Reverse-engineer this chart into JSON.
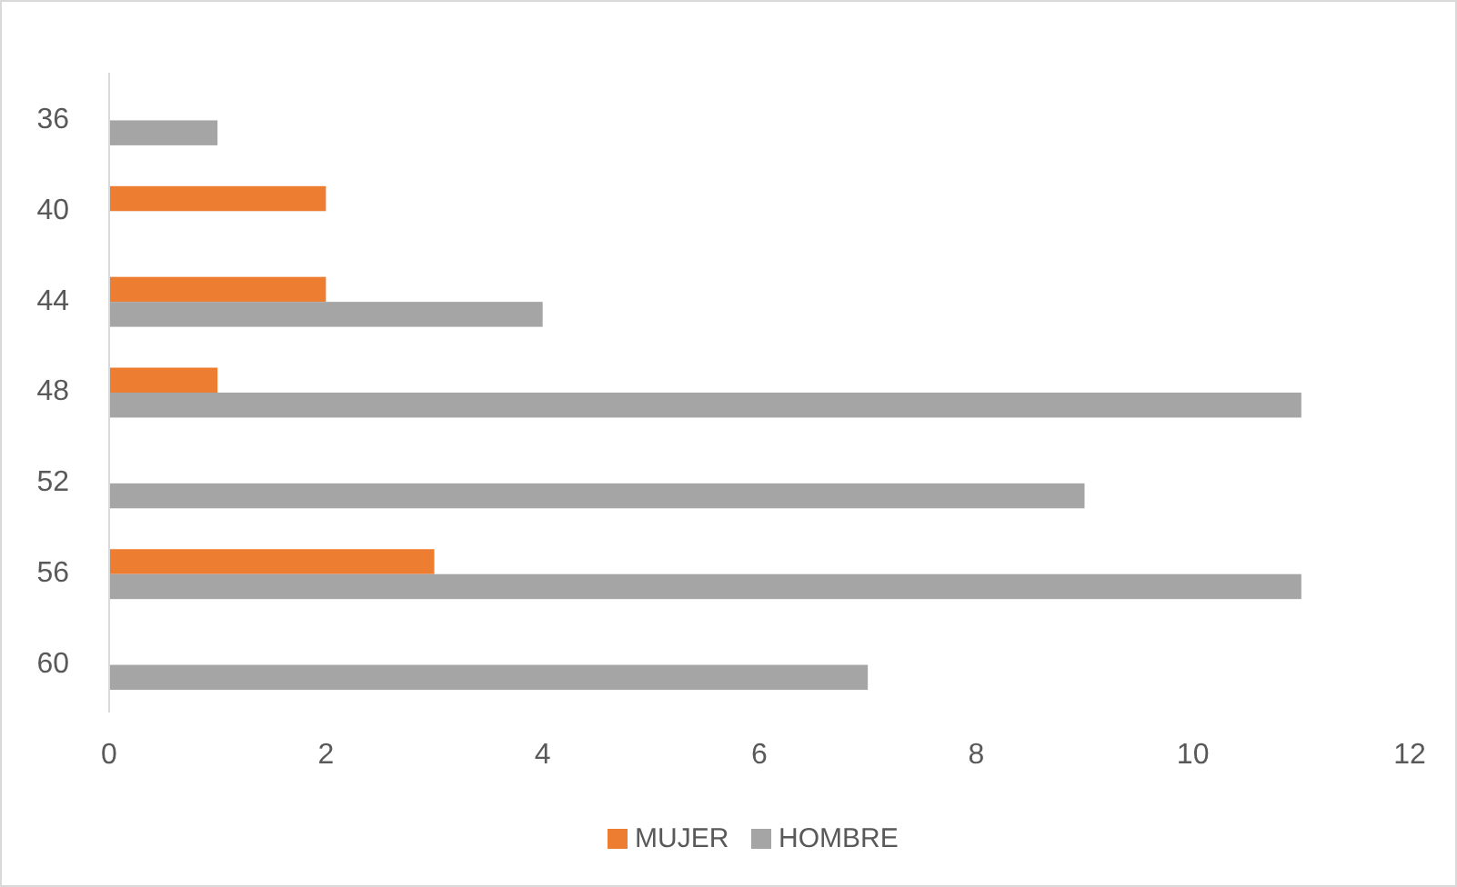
{
  "chart_data": {
    "type": "bar",
    "orientation": "horizontal",
    "categories": [
      "36",
      "40",
      "44",
      "48",
      "52",
      "56",
      "60"
    ],
    "series": [
      {
        "name": "MUJER",
        "color": "#ed7d31",
        "values": [
          null,
          2,
          2,
          1,
          null,
          3,
          null
        ]
      },
      {
        "name": "HOMBRE",
        "color": "#a5a5a5",
        "values": [
          1,
          null,
          4,
          11,
          9,
          11,
          7
        ]
      }
    ],
    "xlim": [
      0,
      12
    ],
    "xticks": [
      0,
      2,
      4,
      6,
      8,
      10,
      12
    ],
    "grid": false,
    "legend": "bottom"
  }
}
